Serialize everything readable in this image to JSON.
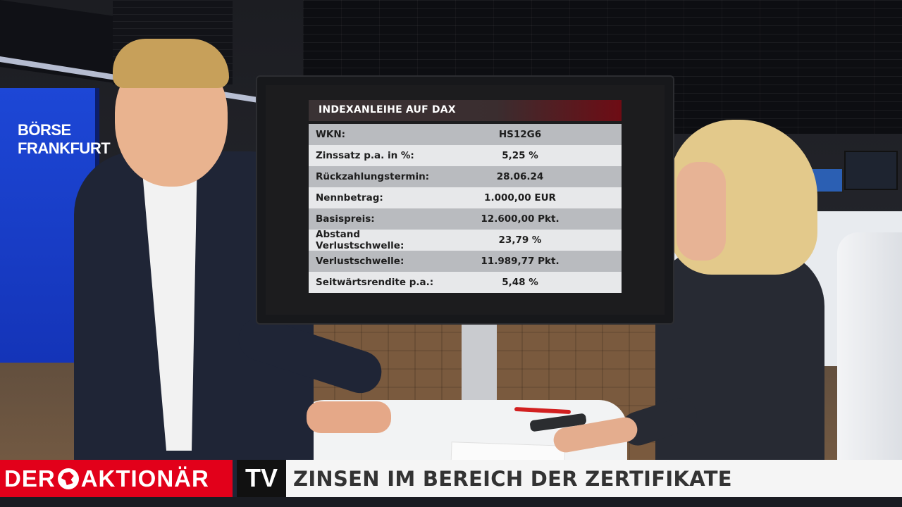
{
  "studio": {
    "wall_sign_line1": "BÖRSE",
    "wall_sign_line2": "FRANKFURT"
  },
  "screen": {
    "title": "INDEXANLEIHE AUF DAX",
    "rows": [
      {
        "label": "WKN:",
        "value": "HS12G6"
      },
      {
        "label": "Zinssatz p.a. in %:",
        "value": "5,25 %"
      },
      {
        "label": "Rückzahlungstermin:",
        "value": "28.06.24"
      },
      {
        "label": "Nennbetrag:",
        "value": "1.000,00 EUR"
      },
      {
        "label": "Basispreis:",
        "value": "12.600,00 Pkt."
      },
      {
        "label": "Abstand Verlustschwelle:",
        "value": "23,79 %"
      },
      {
        "label": "Verlustschwelle:",
        "value": "11.989,77 Pkt."
      },
      {
        "label": "Seitwärtsrendite p.a.:",
        "value": "5,48 %"
      }
    ]
  },
  "lower_third": {
    "brand_left": "DER",
    "brand_right": "AKTIONÄR",
    "channel": "TV",
    "headline": "ZINSEN IM BEREICH DER ZERTIFIKATE"
  },
  "colors": {
    "brand_red": "#e2001a",
    "tv_black": "#111111",
    "wall_blue": "#1d47d6"
  }
}
